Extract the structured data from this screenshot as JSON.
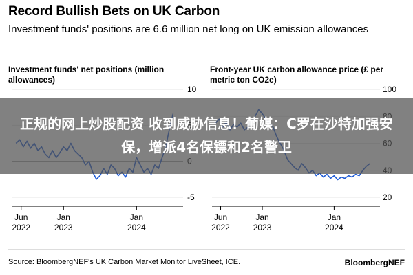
{
  "header": {
    "title": "Record Bullish Bets on UK Carbon",
    "subtitle": "Investment funds' positions are 6.6 million net long on UK emission allowances"
  },
  "banner": {
    "text": "正规的网上炒股配资 收到威胁信息！葡媒：C罗在沙特加强安保，增派4名保镖和2名警卫"
  },
  "footer": {
    "source": "Source: BloombergNEF's UK Carbon Market Monitor LiveSheet, ICE.",
    "brand": "BloombergNEF"
  },
  "colors": {
    "line": "#1E5BD6",
    "zero_line": "#999999",
    "grid": "#e6e6e6"
  },
  "chart_data": [
    {
      "type": "line",
      "title": "Investment funds' net positions (million allowances)",
      "ylim": [
        -5,
        10
      ],
      "yticks": [
        "10",
        "5",
        "0",
        "-5"
      ],
      "ytick_values": [
        10,
        5,
        0,
        -5
      ],
      "xticks": [
        {
          "label": "Jun\n2022",
          "value": 2022.42
        },
        {
          "label": "Jan\n2023",
          "value": 2023.0
        },
        {
          "label": "Jan\n2024",
          "value": 2024.0
        }
      ],
      "xlim": [
        2022.3,
        2024.6
      ],
      "series": [
        {
          "values": [
            [
              2022.35,
              2.5
            ],
            [
              2022.4,
              3.0
            ],
            [
              2022.45,
              2.0
            ],
            [
              2022.5,
              2.8
            ],
            [
              2022.55,
              1.8
            ],
            [
              2022.6,
              2.5
            ],
            [
              2022.65,
              1.5
            ],
            [
              2022.7,
              2.0
            ],
            [
              2022.75,
              1.0
            ],
            [
              2022.8,
              0.5
            ],
            [
              2022.85,
              1.5
            ],
            [
              2022.9,
              0.5
            ],
            [
              2022.95,
              1.2
            ],
            [
              2023.0,
              2.0
            ],
            [
              2023.05,
              1.5
            ],
            [
              2023.1,
              2.5
            ],
            [
              2023.15,
              1.5
            ],
            [
              2023.2,
              1.0
            ],
            [
              2023.25,
              0.5
            ],
            [
              2023.3,
              -0.5
            ],
            [
              2023.35,
              0.0
            ],
            [
              2023.4,
              -1.5
            ],
            [
              2023.45,
              -2.5
            ],
            [
              2023.5,
              -2.0
            ],
            [
              2023.55,
              -1.0
            ],
            [
              2023.6,
              -1.8
            ],
            [
              2023.65,
              -0.5
            ],
            [
              2023.7,
              -1.0
            ],
            [
              2023.75,
              -2.0
            ],
            [
              2023.8,
              -1.5
            ],
            [
              2023.85,
              -2.2
            ],
            [
              2023.9,
              -1.0
            ],
            [
              2023.95,
              -1.5
            ],
            [
              2024.0,
              0.5
            ],
            [
              2024.05,
              -0.5
            ],
            [
              2024.1,
              -1.5
            ],
            [
              2024.15,
              -1.0
            ],
            [
              2024.2,
              -1.8
            ],
            [
              2024.25,
              -0.5
            ],
            [
              2024.3,
              -1.0
            ],
            [
              2024.35,
              0.5
            ],
            [
              2024.4,
              2.0
            ],
            [
              2024.45,
              4.5
            ],
            [
              2024.5,
              6.6
            ]
          ]
        }
      ]
    },
    {
      "type": "line",
      "title": "Front-year UK carbon allowance price (£ per metric ton CO2e)",
      "ylim": [
        20,
        100
      ],
      "yticks": [
        "100",
        "80",
        "60",
        "40",
        "20"
      ],
      "ytick_values": [
        100,
        80,
        60,
        40,
        20
      ],
      "xticks": [
        {
          "label": "Jun\n2022",
          "value": 2022.42
        },
        {
          "label": "Jan\n2023",
          "value": 2023.0
        },
        {
          "label": "Jan\n2024",
          "value": 2024.0
        }
      ],
      "xlim": [
        2022.3,
        2024.6
      ],
      "series": [
        {
          "values": [
            [
              2022.35,
              75
            ],
            [
              2022.4,
              78
            ],
            [
              2022.45,
              72
            ],
            [
              2022.5,
              76
            ],
            [
              2022.55,
              70
            ],
            [
              2022.6,
              74
            ],
            [
              2022.65,
              72
            ],
            [
              2022.7,
              75
            ],
            [
              2022.75,
              70
            ],
            [
              2022.8,
              72
            ],
            [
              2022.85,
              76
            ],
            [
              2022.9,
              80
            ],
            [
              2022.95,
              85
            ],
            [
              2023.0,
              82
            ],
            [
              2023.05,
              78
            ],
            [
              2023.1,
              75
            ],
            [
              2023.15,
              72
            ],
            [
              2023.2,
              65
            ],
            [
              2023.25,
              60
            ],
            [
              2023.3,
              55
            ],
            [
              2023.35,
              48
            ],
            [
              2023.4,
              45
            ],
            [
              2023.45,
              42
            ],
            [
              2023.5,
              40
            ],
            [
              2023.55,
              45
            ],
            [
              2023.6,
              42
            ],
            [
              2023.65,
              38
            ],
            [
              2023.7,
              40
            ],
            [
              2023.75,
              36
            ],
            [
              2023.8,
              38
            ],
            [
              2023.85,
              35
            ],
            [
              2023.9,
              37
            ],
            [
              2023.95,
              34
            ],
            [
              2024.0,
              36
            ],
            [
              2024.05,
              33
            ],
            [
              2024.1,
              35
            ],
            [
              2024.15,
              34
            ],
            [
              2024.2,
              36
            ],
            [
              2024.25,
              35
            ],
            [
              2024.3,
              37
            ],
            [
              2024.35,
              36
            ],
            [
              2024.4,
              40
            ],
            [
              2024.45,
              43
            ],
            [
              2024.5,
              45
            ]
          ]
        }
      ]
    }
  ]
}
